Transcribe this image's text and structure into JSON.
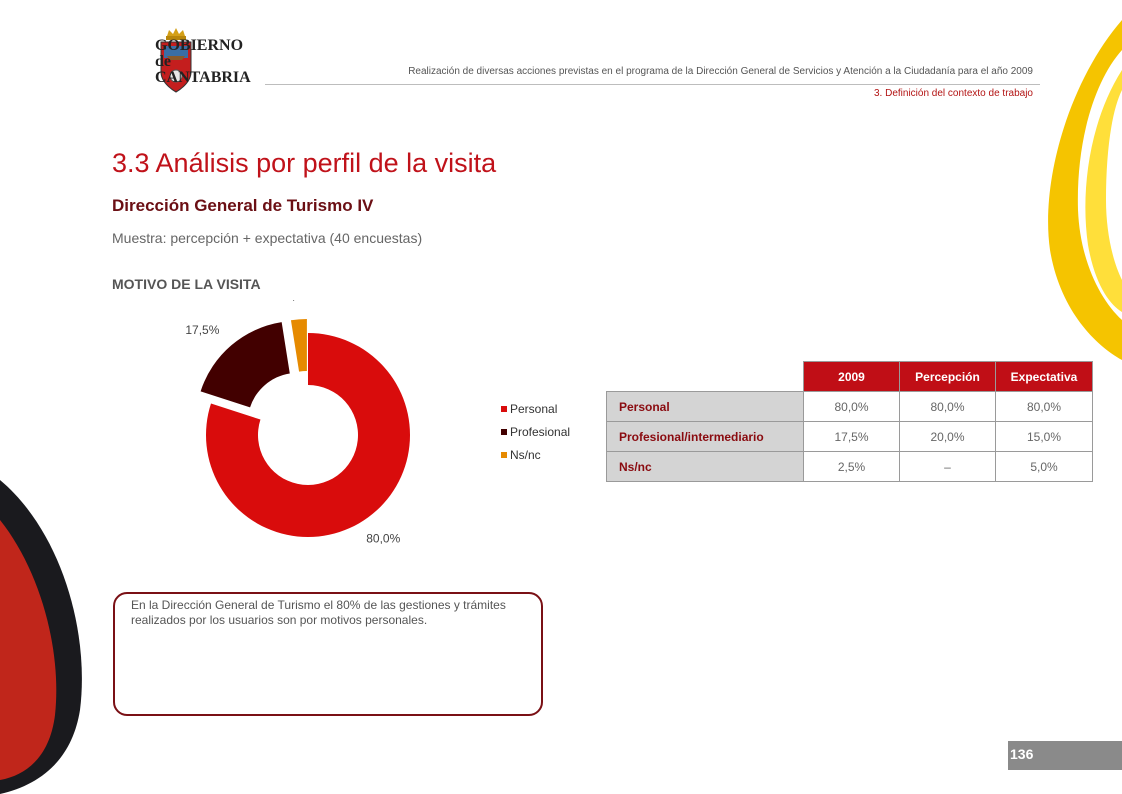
{
  "header": {
    "logo_lines": [
      "GOBIERNO",
      "de",
      "CANTABRIA"
    ],
    "title": "Realización de diversas acciones previstas en el programa de la Dirección General de Servicios y Atención a la Ciudadanía para el año 2009",
    "section": "3. Definición del contexto de trabajo"
  },
  "page": {
    "title": "3.3 Análisis por perfil de la visita",
    "subtitle": "Dirección General de Turismo IV",
    "sample": "Muestra: percepción + expectativa (40 encuestas)",
    "chart_heading": "MOTIVO DE LA VISITA",
    "number": "136"
  },
  "chart_data": {
    "type": "pie",
    "categories": [
      "Personal",
      "Profesional",
      "Ns/nc"
    ],
    "values": [
      80.0,
      17.5,
      2.5
    ],
    "value_labels": [
      "80,0%",
      "17,5%",
      "2,5%"
    ],
    "colors": [
      "#d90c0c",
      "#420000",
      "#e68a00"
    ],
    "legend_position": "right",
    "donut": true
  },
  "table": {
    "headers": [
      "2009",
      "Percepción",
      "Expectativa"
    ],
    "rows": [
      {
        "label": "Personal",
        "values": [
          "80,0%",
          "80,0%",
          "80,0%"
        ]
      },
      {
        "label": "Profesional/intermediario",
        "values": [
          "17,5%",
          "20,0%",
          "15,0%"
        ]
      },
      {
        "label": "Ns/nc",
        "values": [
          "2,5%",
          "–",
          "5,0%"
        ]
      }
    ]
  },
  "note": {
    "text": "En la Dirección General  de Turismo  el 80%  de las gestiones y trámites realizados por los usuarios son por motivos personales."
  },
  "colors": {
    "accent_red": "#c0121a",
    "dark_red": "#6b0f14",
    "table_header": "#c00e16",
    "page_number_bar": "#8a8a8a"
  }
}
